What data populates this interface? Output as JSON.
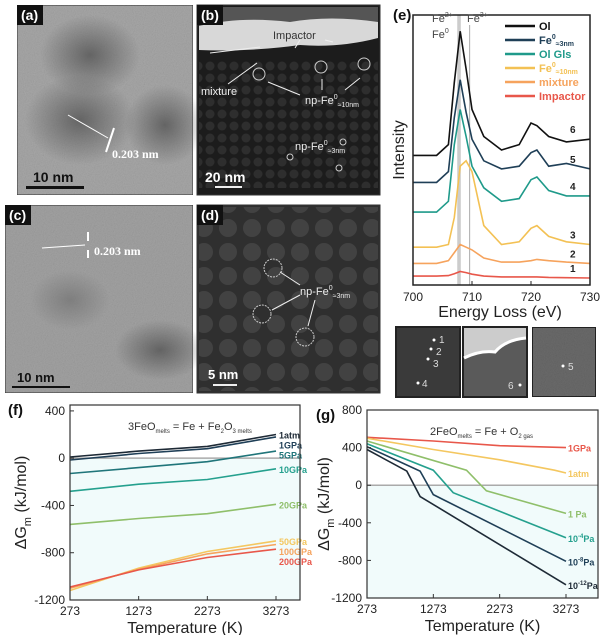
{
  "panels": {
    "a": {
      "label": "(a)",
      "lattice": "0.203 nm",
      "scale": "10 nm"
    },
    "b": {
      "label": "(b)",
      "impactor": "Impactor",
      "mixture": "mixture",
      "np10": "np-Fe",
      "np10_sup": "0",
      "np10_sub": "≈10nm",
      "np3": "np-Fe",
      "np3_sup": "0",
      "np3_sub": "≈3nm",
      "scale": "20 nm"
    },
    "c": {
      "label": "(c)",
      "lattice": "0.203 nm",
      "scale": "10 nm"
    },
    "d": {
      "label": "(d)",
      "np3": "np-Fe",
      "np3_sup": "0",
      "np3_sub": "≈3nm",
      "scale": "5 nm"
    },
    "insets": {
      "left_points": [
        "1",
        "2",
        "3",
        "4"
      ],
      "middle_points": [
        "6"
      ],
      "right_points": [
        "5"
      ]
    }
  },
  "chart_data": [
    {
      "panel": "(e)",
      "type": "line",
      "xlabel": "Energy Loss (eV)",
      "ylabel": "Intensity",
      "xlim": [
        700,
        730
      ],
      "xticks": [
        700,
        710,
        720,
        730
      ],
      "annotations": {
        "fe2": "Fe",
        "fe2_sup": "2+",
        "fe3": "Fe",
        "fe3_sup": "3+",
        "fe0": "Fe",
        "fe0_sup": "0",
        "lines_eV": [
          707.8,
          709.6
        ]
      },
      "legend_placement": "top-right",
      "x": [
        700,
        704,
        706,
        707,
        708,
        709,
        710,
        712,
        715,
        718,
        720,
        721,
        723,
        726,
        730
      ],
      "series": [
        {
          "name": "Ol",
          "sub": "",
          "number": "6",
          "color": "#111111",
          "values": [
            48,
            48,
            52,
            75,
            94,
            80,
            65,
            55,
            50,
            52,
            60,
            59,
            55,
            53,
            54
          ]
        },
        {
          "name": "Fe",
          "sup": "0",
          "sub": "≈3nm",
          "number": "5",
          "color": "#1f3f57",
          "values": [
            38,
            38,
            42,
            62,
            76,
            64,
            54,
            46,
            43,
            44,
            49,
            50,
            44,
            45,
            43
          ]
        },
        {
          "name": "Ol Gls",
          "sub": "",
          "number": "4",
          "color": "#1f9a8a",
          "values": [
            27,
            27,
            31,
            52,
            65,
            55,
            44,
            36,
            31,
            32,
            39,
            40,
            35,
            33,
            33
          ]
        },
        {
          "name": "Fe",
          "sup": "0",
          "sub": "≈10nm",
          "number": "3",
          "color": "#f3c154",
          "values": [
            14,
            14,
            15,
            25,
            44,
            46,
            42,
            22,
            15,
            16,
            21,
            22,
            18,
            16,
            15
          ]
        },
        {
          "name": "mixture",
          "sub": "",
          "number": "2",
          "color": "#f6a35d",
          "values": [
            8,
            8,
            9,
            12,
            15,
            14,
            13,
            10,
            8.5,
            8.5,
            9,
            9.5,
            9,
            8.5,
            8
          ]
        },
        {
          "name": "Impactor",
          "sub": "",
          "number": "1",
          "color": "#e8574a",
          "values": [
            3.3,
            3.3,
            3.5,
            4.2,
            5,
            4.6,
            4,
            3.3,
            3,
            3,
            3,
            3,
            2.8,
            2.7,
            2.6
          ]
        }
      ]
    },
    {
      "panel": "(f)",
      "type": "line",
      "title": "3FeO",
      "title_sub1": "melts",
      "title_mid": " = Fe + Fe",
      "title_sub2": "2",
      "title_mid2": "O",
      "title_sub3": "3 melts",
      "xlabel": "Temperature (K)",
      "ylabel": "ΔG",
      "ylabel_sub": "m",
      "ylabel_unit": " (kJ/mol)",
      "xlim": [
        273,
        3673
      ],
      "ylim": [
        -1200,
        450
      ],
      "xticks": [
        273,
        1273,
        2273,
        3273
      ],
      "yticks": [
        400,
        0,
        -400,
        -800,
        -1200
      ],
      "x": [
        273,
        1273,
        2273,
        3273
      ],
      "series": [
        {
          "name": "1atm",
          "color": "#1e2a36",
          "values": [
            10,
            60,
            100,
            200
          ]
        },
        {
          "name": "1GPa",
          "color": "#1f3f57",
          "values": [
            -15,
            40,
            80,
            180
          ]
        },
        {
          "name": "5GPa",
          "color": "#20757a",
          "values": [
            -130,
            -80,
            -30,
            60
          ]
        },
        {
          "name": "10GPa",
          "color": "#25a08e",
          "values": [
            -280,
            -220,
            -180,
            -90
          ]
        },
        {
          "name": "20GPa",
          "color": "#8fbf6a",
          "values": [
            -560,
            -510,
            -470,
            -390
          ]
        },
        {
          "name": "50GPa",
          "color": "#f4c760",
          "values": [
            -1120,
            -930,
            -790,
            -700
          ]
        },
        {
          "name": "100GPa",
          "color": "#f6a35d",
          "values": [
            -1100,
            -940,
            -810,
            -730
          ]
        },
        {
          "name": "200GPa",
          "color": "#e8574a",
          "values": [
            -1090,
            -945,
            -840,
            -770
          ]
        }
      ]
    },
    {
      "panel": "(g)",
      "type": "line",
      "title": "2FeO",
      "title_sub1": "melts",
      "title_mid": " = Fe + O",
      "title_sub2": "2 gas",
      "xlabel": "Temperature (K)",
      "ylabel": "ΔG",
      "ylabel_sub": "m",
      "ylabel_unit": " (kJ/mol)",
      "xlim": [
        273,
        3673
      ],
      "ylim": [
        -1200,
        800
      ],
      "xticks": [
        273,
        1273,
        2273,
        3273
      ],
      "yticks": [
        800,
        400,
        0,
        -400,
        -800,
        -1200
      ],
      "series": [
        {
          "name": "1GPa",
          "color": "#e8574a",
          "x": [
            273,
            1273,
            2273,
            3273
          ],
          "values": [
            510,
            470,
            420,
            400
          ]
        },
        {
          "name": "1atm",
          "color": "#f4c760",
          "x": [
            273,
            1273,
            2273,
            3100,
            3273
          ],
          "values": [
            500,
            380,
            270,
            160,
            130
          ]
        },
        {
          "name": "1 Pa",
          "color": "#8fbf6a",
          "x": [
            273,
            1773,
            2073,
            3273
          ],
          "values": [
            470,
            160,
            -60,
            -300
          ]
        },
        {
          "name": "10",
          "sup": "-4",
          "unit": "Pa",
          "color": "#25a08e",
          "x": [
            273,
            1273,
            1573,
            3273
          ],
          "values": [
            440,
            160,
            -80,
            -560
          ]
        },
        {
          "name": "10",
          "sup": "-8",
          "unit": "Pa",
          "color": "#1f3f57",
          "x": [
            273,
            1073,
            1273,
            3273
          ],
          "values": [
            410,
            150,
            -100,
            -810
          ]
        },
        {
          "name": "10",
          "sup": "-12",
          "unit": "Pa",
          "color": "#1e2a36",
          "x": [
            273,
            873,
            1073,
            3273
          ],
          "values": [
            380,
            150,
            -120,
            -1060
          ]
        }
      ]
    }
  ]
}
